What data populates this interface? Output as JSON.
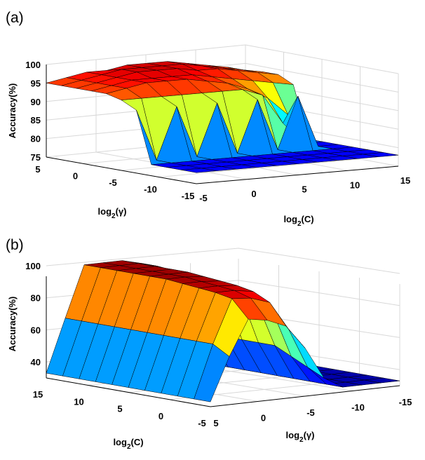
{
  "chart_data": [
    {
      "panel": "(a)",
      "type": "surface",
      "zlabel": "Accuracy(%)",
      "xlabel_base": "log",
      "xlabel_sub": "2",
      "xlabel_arg": "(C)",
      "ylabel_base": "log",
      "ylabel_sub": "2",
      "ylabel_arg": "(γ)",
      "x_ticks": [
        "-5",
        "0",
        "5",
        "10",
        "15"
      ],
      "y_ticks": [
        "5",
        "0",
        "-5",
        "-10",
        "-15"
      ],
      "z_ticks": [
        "75",
        "80",
        "85",
        "90",
        "95",
        "100"
      ],
      "xlim": [
        -5,
        15
      ],
      "ylim": [
        -15,
        5
      ],
      "zlim": [
        75,
        100
      ],
      "grid": true,
      "x": [
        -5,
        -3,
        -1,
        1,
        3,
        5,
        7,
        9,
        11,
        13,
        15
      ],
      "y": [
        -15,
        -13,
        -11,
        -9,
        -7,
        -5,
        -3,
        -1,
        1,
        3,
        5
      ],
      "accuracy": [
        [
          78,
          78,
          78,
          78,
          78,
          78,
          78,
          78,
          78,
          78,
          78
        ],
        [
          78,
          78,
          78,
          78,
          78,
          78,
          78,
          78,
          78,
          78,
          78
        ],
        [
          78,
          78,
          78,
          78,
          78,
          78,
          78,
          78,
          78,
          78,
          78
        ],
        [
          78,
          78,
          78,
          78,
          78,
          78,
          78,
          78,
          78,
          78,
          78
        ],
        [
          92,
          78,
          92,
          78,
          92,
          78,
          92,
          78,
          92,
          78,
          78
        ],
        [
          94,
          94,
          94,
          94,
          94,
          94,
          94,
          92,
          84,
          78,
          78
        ],
        [
          95,
          96,
          97,
          97,
          97,
          96,
          95,
          93,
          90,
          85,
          78
        ],
        [
          95,
          96,
          97,
          97,
          97,
          97,
          96,
          95,
          94,
          93,
          92
        ],
        [
          95,
          96,
          97,
          98,
          98,
          98,
          97,
          97,
          96,
          95,
          94
        ],
        [
          95,
          96,
          97,
          98,
          98,
          98,
          98,
          97,
          96,
          95,
          94
        ],
        [
          95,
          96,
          97,
          97,
          98,
          98,
          98,
          97,
          96,
          95,
          93
        ]
      ]
    },
    {
      "panel": "(b)",
      "type": "surface",
      "zlabel": "Accuracy(%)",
      "xlabel_base": "log",
      "xlabel_sub": "2",
      "xlabel_arg": "(C)",
      "ylabel_base": "log",
      "ylabel_sub": "2",
      "ylabel_arg": "(γ)",
      "x_ticks": [
        "15",
        "10",
        "5",
        "0",
        "-5"
      ],
      "y_ticks": [
        "5",
        "0",
        "-5",
        "-10",
        "-15"
      ],
      "z_ticks": [
        "40",
        "60",
        "80",
        "100"
      ],
      "xlim": [
        -5,
        15
      ],
      "ylim": [
        -15,
        5
      ],
      "zlim": [
        30,
        100
      ],
      "grid": true,
      "x": [
        -5,
        -3,
        -1,
        1,
        3,
        5,
        7,
        9,
        11,
        13,
        15
      ],
      "y": [
        -15,
        -13,
        -11,
        -9,
        -7,
        -5,
        -3,
        -1,
        1,
        3,
        5
      ],
      "accuracy": [
        [
          33,
          33,
          33,
          33,
          33,
          33,
          33,
          33,
          33,
          33,
          33
        ],
        [
          33,
          33,
          33,
          33,
          33,
          33,
          33,
          33,
          33,
          33,
          33
        ],
        [
          33,
          33,
          33,
          33,
          33,
          33,
          33,
          33,
          33,
          33,
          33
        ],
        [
          33,
          33,
          33,
          33,
          33,
          33,
          33,
          33,
          33,
          33,
          33
        ],
        [
          40,
          45,
          50,
          55,
          55,
          55,
          55,
          55,
          55,
          55,
          55
        ],
        [
          60,
          70,
          80,
          85,
          88,
          90,
          92,
          93,
          94,
          95,
          95
        ],
        [
          75,
          88,
          93,
          95,
          96,
          97,
          98,
          98,
          98,
          98,
          98
        ],
        [
          80,
          92,
          95,
          96,
          97,
          98,
          98,
          98,
          98,
          98,
          98
        ],
        [
          82,
          93,
          95,
          96,
          97,
          98,
          98,
          98,
          98,
          98,
          98
        ],
        [
          60,
          66,
          66,
          66,
          66,
          66,
          66,
          66,
          66,
          66,
          66
        ],
        [
          33,
          33,
          33,
          33,
          33,
          33,
          33,
          33,
          33,
          33,
          33
        ]
      ]
    }
  ]
}
